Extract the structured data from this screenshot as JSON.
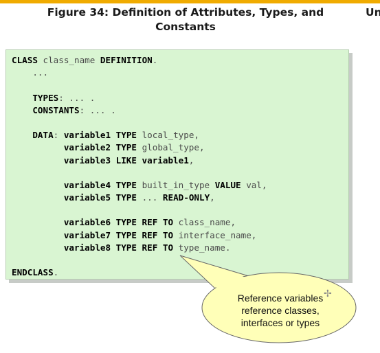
{
  "figure": {
    "title_line1": "Figure 34: Definition of Attributes, Types, and",
    "title_line2": "Constants",
    "side_fragment": "Un"
  },
  "code_lines": [
    [
      [
        "k",
        "CLASS"
      ],
      [
        "t",
        " class_name "
      ],
      [
        "k",
        "DEFINITION"
      ],
      [
        "t",
        "."
      ]
    ],
    [
      [
        "t",
        "    ..."
      ]
    ],
    [],
    [
      [
        "k",
        "    TYPES"
      ],
      [
        "t",
        ": ... ."
      ]
    ],
    [
      [
        "k",
        "    CONSTANTS"
      ],
      [
        "t",
        ": ... ."
      ]
    ],
    [],
    [
      [
        "k",
        "    DATA"
      ],
      [
        "t",
        ": "
      ],
      [
        "k",
        "variable1 TYPE"
      ],
      [
        "t",
        " local_type,"
      ]
    ],
    [
      [
        "k",
        "          variable2 TYPE"
      ],
      [
        "t",
        " global_type,"
      ]
    ],
    [
      [
        "k",
        "          variable3 LIKE variable1"
      ],
      [
        "t",
        ","
      ]
    ],
    [],
    [
      [
        "k",
        "          variable4 TYPE"
      ],
      [
        "t",
        " built_in_type "
      ],
      [
        "k",
        "VALUE"
      ],
      [
        "t",
        " val,"
      ]
    ],
    [
      [
        "k",
        "          variable5 TYPE"
      ],
      [
        "t",
        " ... "
      ],
      [
        "k",
        "READ-ONLY"
      ],
      [
        "t",
        ","
      ]
    ],
    [],
    [
      [
        "k",
        "          variable6 TYPE REF TO"
      ],
      [
        "t",
        " class_name,"
      ]
    ],
    [
      [
        "k",
        "          variable7 TYPE REF TO"
      ],
      [
        "t",
        " interface_name,"
      ]
    ],
    [
      [
        "k",
        "          variable8 TYPE REF TO"
      ],
      [
        "t",
        " type_name."
      ]
    ],
    [],
    [
      [
        "k",
        "ENDCLASS"
      ],
      [
        "t",
        "."
      ]
    ]
  ],
  "callout": {
    "lines": [
      "Reference variables",
      "reference classes,",
      "interfaces or types"
    ]
  },
  "colors": {
    "accent_bar": "#f0ab00",
    "code_background": "#d9f5d2",
    "callout_fill": "#ffffb8"
  }
}
